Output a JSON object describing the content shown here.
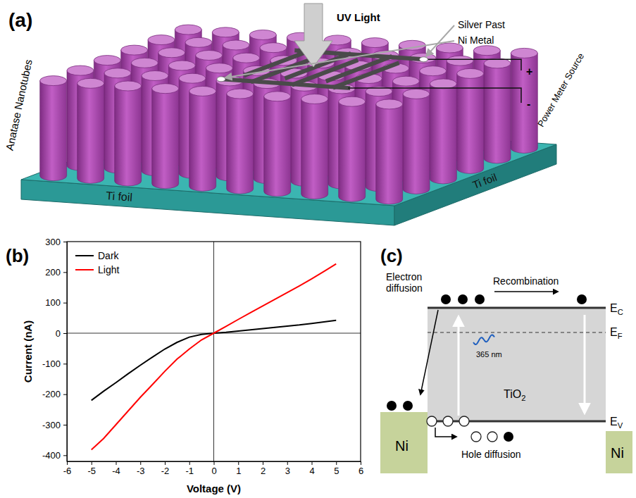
{
  "chart_data": {
    "type": "line",
    "panel_label": "(b)",
    "x_label": "Voltage (V)",
    "y_label": "Current (nA)",
    "x": [
      -5,
      -4.5,
      -4,
      -3.5,
      -3,
      -2.5,
      -2,
      -1.5,
      -1,
      -0.5,
      0,
      0.5,
      1,
      1.5,
      2,
      2.5,
      3,
      3.5,
      4,
      4.5,
      5
    ],
    "series": [
      {
        "name": "Dark",
        "color": "#000000",
        "values": [
          -220,
          -190,
          -162,
          -133,
          -105,
          -78,
          -52,
          -30,
          -13,
          -4,
          0,
          3,
          7,
          11,
          15,
          19,
          23,
          27,
          32,
          37,
          42
        ]
      },
      {
        "name": "Light",
        "color": "#ff0000",
        "values": [
          -382,
          -345,
          -300,
          -255,
          -210,
          -168,
          -125,
          -85,
          -52,
          -22,
          0,
          22,
          45,
          67,
          89,
          111,
          133,
          155,
          178,
          202,
          227
        ]
      }
    ],
    "xlim": [
      -6,
      6
    ],
    "xticks": [
      -6,
      -5,
      -4,
      -3,
      -2,
      -1,
      0,
      1,
      2,
      3,
      4,
      5,
      6
    ],
    "ylim": [
      -420,
      300
    ],
    "yticks": [
      -400,
      -300,
      -200,
      -100,
      0,
      100,
      200,
      300
    ],
    "legend": "upper left"
  },
  "panel_a": {
    "label": "(a)",
    "uv_light": "UV Light",
    "silver_paste": "Silver Past",
    "ni_metal": "Ni Metal",
    "nanotubes": "Anatase Nanotubes",
    "power_source": "Power Meter Source",
    "substrate_labels": [
      "Ti foil",
      "Ti foil"
    ],
    "polarity": [
      "+",
      "-"
    ]
  },
  "panel_c": {
    "label": "(c)",
    "electron_diffusion": "Electron diffusion",
    "recombination": "Recombination",
    "conduction_band": {
      "main": "E",
      "sub": "C"
    },
    "fermi_level": {
      "main": "E",
      "sub": "F"
    },
    "valence_band": {
      "main": "E",
      "sub": "V"
    },
    "wavelength": "365 nm",
    "material": {
      "main": "TiO",
      "sub": "2"
    },
    "contacts": [
      "Ni",
      "Ni"
    ],
    "hole_diffusion": "Hole diffusion"
  }
}
